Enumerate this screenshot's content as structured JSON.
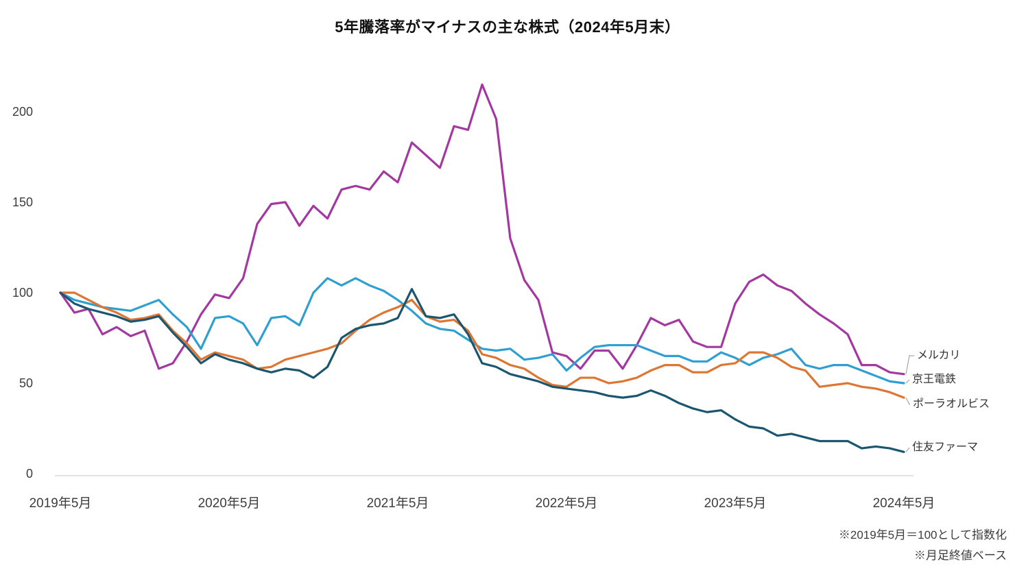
{
  "title": "5年騰落率がマイナスの主な株式（2024年5月末）",
  "notes": [
    "※2019年5月＝100として指数化",
    "※月足終値ベース"
  ],
  "colors": {
    "background": "#ffffff",
    "axis": "#d9d9d9",
    "leader": "#a6a6a6",
    "tick_text": "#3d3d3d",
    "title_text": "#111111"
  },
  "chart_data": {
    "type": "line",
    "title": "5年騰落率がマイナスの主な株式（2024年5月末）",
    "x_unit": "month",
    "months": 61,
    "x_tick_labels": [
      "2019年5月",
      "2020年5月",
      "2021年5月",
      "2022年5月",
      "2023年5月",
      "2024年5月"
    ],
    "x_tick_month_indices": [
      0,
      12,
      24,
      36,
      48,
      60
    ],
    "y_ticks": [
      0,
      50,
      100,
      150,
      200
    ],
    "ylim": [
      0,
      220
    ],
    "grid": false,
    "legend_position": "right-end-labels",
    "index_base_note": "2019年5月=100",
    "series": [
      {
        "name": "メルカリ",
        "slug": "mercari",
        "color": "#a338a0",
        "values": [
          100,
          89,
          91,
          77,
          81,
          76,
          79,
          58,
          61,
          73,
          88,
          99,
          97,
          108,
          138,
          149,
          150,
          137,
          148,
          141,
          157,
          159,
          157,
          167,
          161,
          183,
          176,
          169,
          192,
          190,
          215,
          196,
          130,
          107,
          96,
          67,
          65,
          58,
          68,
          68,
          58,
          71,
          86,
          82,
          85,
          73,
          70,
          70,
          94,
          106,
          110,
          104,
          101,
          94,
          88,
          83,
          77,
          60,
          60,
          56,
          55
        ]
      },
      {
        "name": "京王電鉄",
        "slug": "keio-dentetsu",
        "color": "#2e9fd0",
        "values": [
          100,
          96,
          94,
          92,
          91,
          90,
          93,
          96,
          88,
          81,
          69,
          86,
          87,
          83,
          71,
          86,
          87,
          82,
          100,
          108,
          104,
          108,
          104,
          101,
          96,
          90,
          83,
          80,
          79,
          74,
          69,
          68,
          69,
          63,
          64,
          66,
          57,
          64,
          70,
          71,
          71,
          71,
          68,
          65,
          65,
          62,
          62,
          67,
          64,
          60,
          64,
          66,
          69,
          60,
          58,
          60,
          60,
          57,
          54,
          51,
          50
        ]
      },
      {
        "name": "ポーラオルビス",
        "slug": "pola-orbis",
        "color": "#de7633",
        "values": [
          100,
          100,
          96,
          92,
          89,
          85,
          86,
          88,
          79,
          72,
          63,
          67,
          65,
          63,
          58,
          59,
          63,
          65,
          67,
          69,
          72,
          79,
          85,
          89,
          92,
          96,
          87,
          84,
          85,
          79,
          66,
          64,
          60,
          58,
          53,
          49,
          48,
          53,
          53,
          50,
          51,
          53,
          57,
          60,
          60,
          56,
          56,
          60,
          61,
          67,
          67,
          64,
          59,
          57,
          48,
          49,
          50,
          48,
          47,
          45,
          42
        ]
      },
      {
        "name": "住友ファーマ",
        "slug": "sumitomo-pharma",
        "color": "#1b5671",
        "values": [
          100,
          94,
          91,
          89,
          87,
          84,
          85,
          87,
          78,
          70,
          61,
          66,
          63,
          61,
          58,
          56,
          58,
          57,
          53,
          59,
          75,
          80,
          82,
          83,
          86,
          102,
          87,
          86,
          88,
          77,
          61,
          59,
          55,
          53,
          51,
          48,
          47,
          46,
          45,
          43,
          42,
          43,
          46,
          43,
          39,
          36,
          34,
          35,
          30,
          26,
          25,
          21,
          22,
          20,
          18,
          18,
          18,
          14,
          15,
          14,
          12
        ]
      }
    ]
  }
}
